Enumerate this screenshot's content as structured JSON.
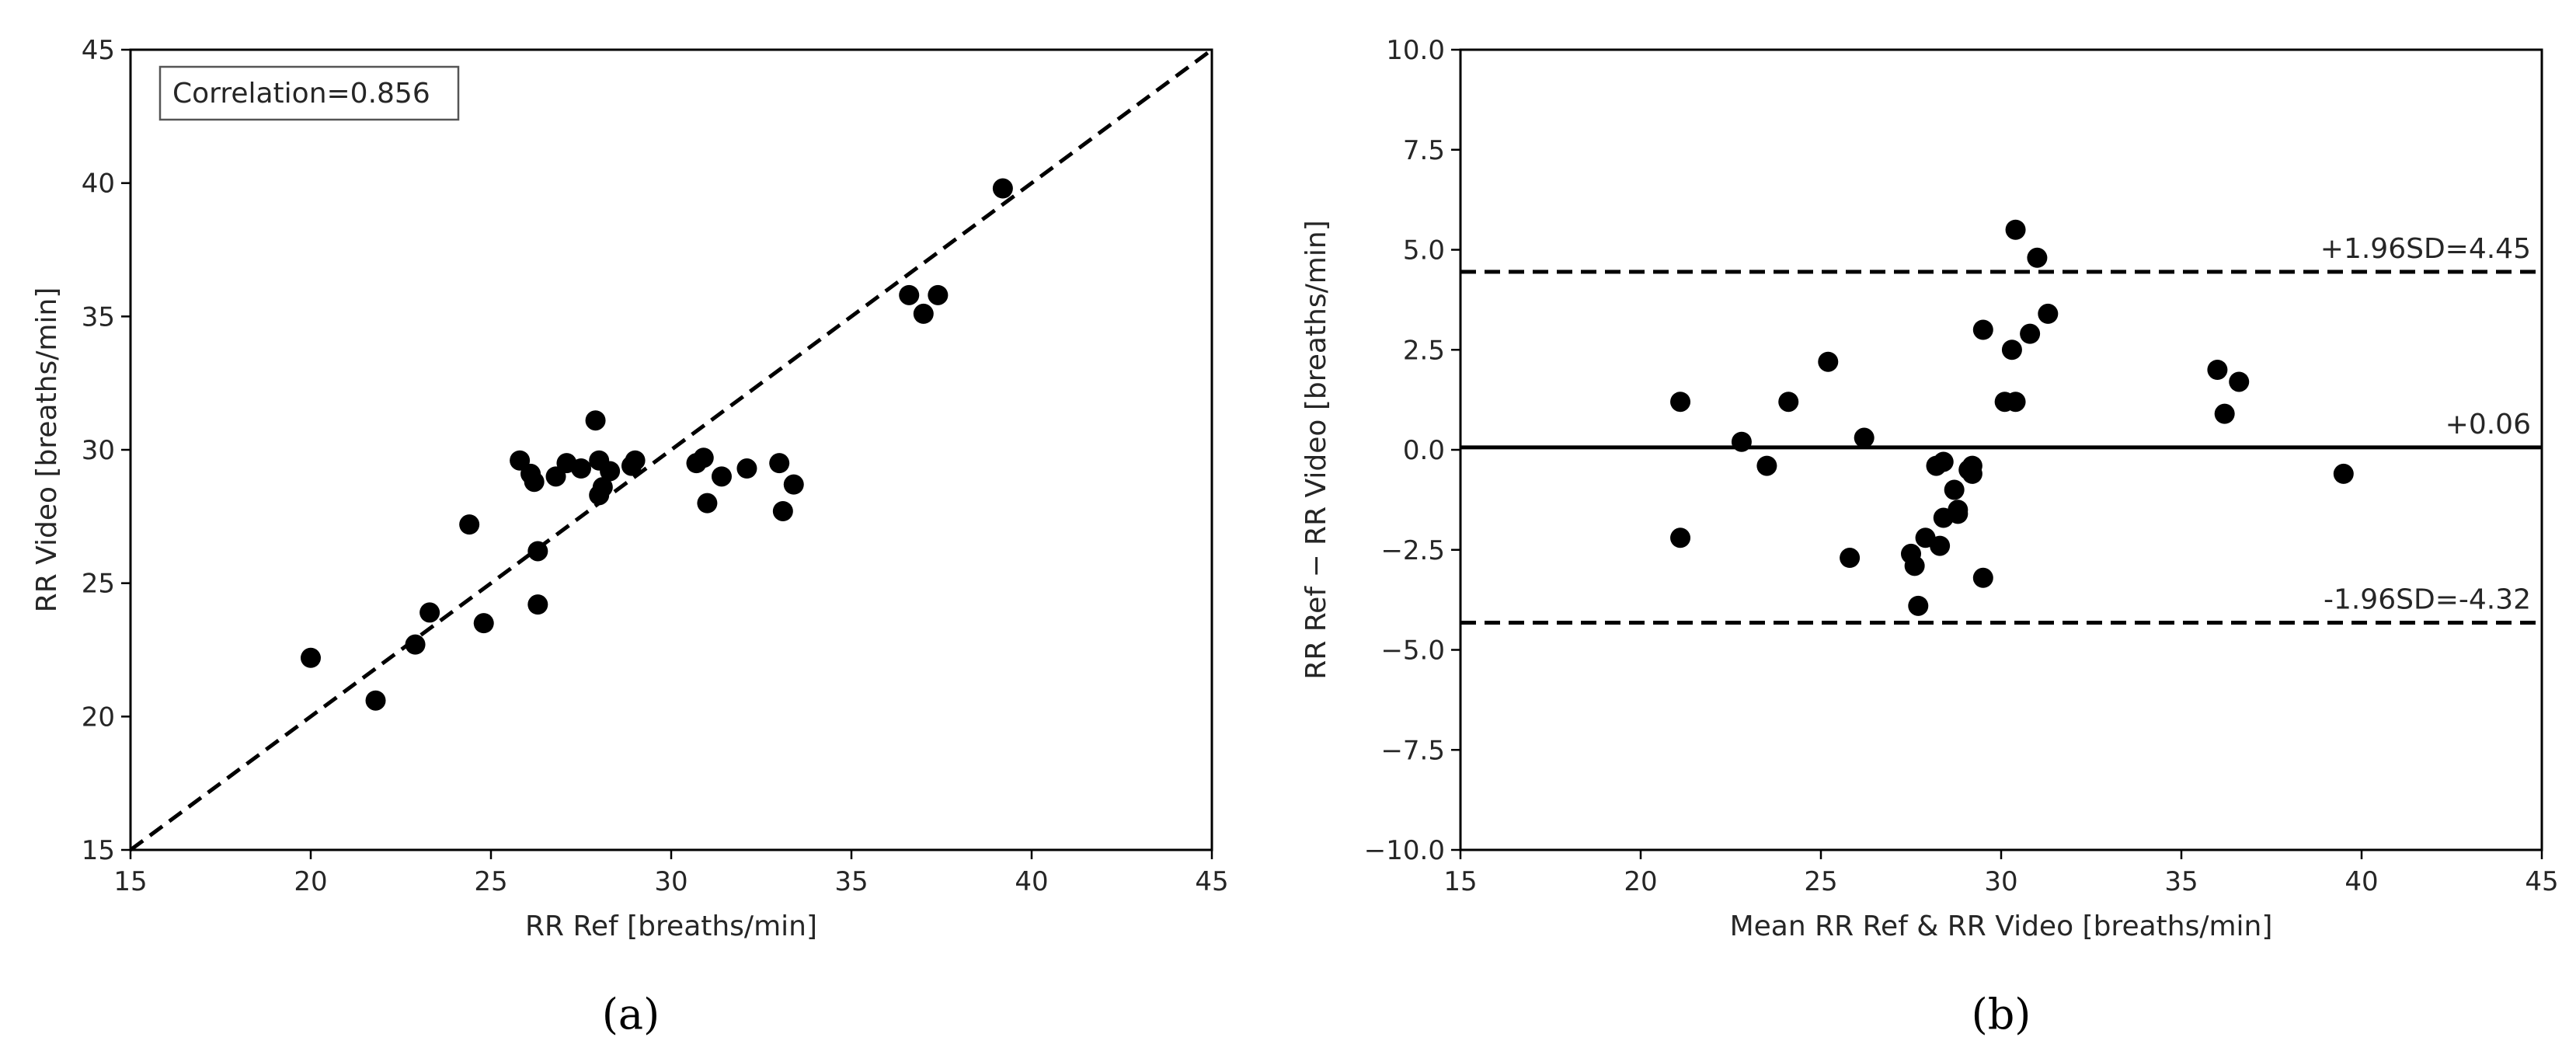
{
  "chart_data": [
    {
      "type": "scatter",
      "panel_caption": "(a)",
      "xlabel": "RR Ref [breaths/min]",
      "ylabel": "RR Video [breaths/min]",
      "xlim": [
        15,
        45
      ],
      "ylim": [
        15,
        45
      ],
      "xticks": [
        15,
        20,
        25,
        30,
        35,
        40,
        45
      ],
      "yticks": [
        15,
        20,
        25,
        30,
        35,
        40,
        45
      ],
      "xtick_labels": [
        "15",
        "20",
        "25",
        "30",
        "35",
        "40",
        "45"
      ],
      "ytick_labels": [
        "15",
        "20",
        "25",
        "30",
        "35",
        "40",
        "45"
      ],
      "legend_text": "Correlation=0.856",
      "legend_location": "top-left",
      "reference_line": {
        "style": "dashed",
        "x": [
          15,
          45
        ],
        "y": [
          15,
          45
        ]
      },
      "points": {
        "x": [
          20.0,
          21.8,
          22.9,
          23.3,
          24.4,
          24.8,
          25.8,
          26.1,
          26.2,
          26.3,
          26.3,
          26.8,
          27.1,
          27.5,
          27.9,
          28.0,
          28.0,
          28.1,
          28.3,
          28.9,
          29.0,
          30.7,
          30.9,
          31.0,
          31.4,
          32.1,
          33.0,
          33.1,
          33.4,
          36.6,
          37.0,
          37.4,
          39.2
        ],
        "y": [
          22.2,
          20.6,
          22.7,
          23.9,
          27.2,
          23.5,
          29.6,
          29.1,
          28.8,
          26.2,
          24.2,
          29.0,
          29.5,
          29.3,
          31.1,
          29.6,
          28.3,
          28.6,
          29.2,
          29.4,
          29.6,
          29.5,
          29.7,
          28.0,
          29.0,
          29.3,
          29.5,
          27.7,
          28.7,
          35.8,
          35.1,
          35.8,
          39.8
        ]
      }
    },
    {
      "type": "scatter",
      "panel_caption": "(b)",
      "xlabel": "Mean RR Ref & RR Video [breaths/min]",
      "ylabel": "RR Ref − RR Video [breaths/min]",
      "xlim": [
        15,
        45
      ],
      "ylim": [
        -10,
        10
      ],
      "xticks": [
        15,
        20,
        25,
        30,
        35,
        40,
        45
      ],
      "yticks": [
        -10,
        -7.5,
        -5,
        -2.5,
        0,
        2.5,
        5,
        7.5,
        10
      ],
      "xtick_labels": [
        "15",
        "20",
        "25",
        "30",
        "35",
        "40",
        "45"
      ],
      "ytick_labels": [
        "−10.0",
        "−7.5",
        "−5.0",
        "−2.5",
        "0.0",
        "2.5",
        "5.0",
        "7.5",
        "10.0"
      ],
      "mean_line": {
        "value": 0.06,
        "label": "+0.06",
        "style": "solid"
      },
      "upper_limit": {
        "value": 4.45,
        "label": "+1.96SD=4.45",
        "style": "dashed"
      },
      "lower_limit": {
        "value": -4.32,
        "label": "-1.96SD=-4.32",
        "style": "dashed"
      },
      "points": {
        "x": [
          21.1,
          21.1,
          22.8,
          23.5,
          24.1,
          25.2,
          25.8,
          26.2,
          27.5,
          27.6,
          27.7,
          27.9,
          28.2,
          28.3,
          28.4,
          28.4,
          28.7,
          28.8,
          28.8,
          29.1,
          29.2,
          29.2,
          29.5,
          29.5,
          30.1,
          30.3,
          30.4,
          30.4,
          30.8,
          31.0,
          31.3,
          36.0,
          36.2,
          36.6,
          39.5
        ],
        "y": [
          1.2,
          -2.2,
          0.2,
          -0.4,
          1.2,
          2.2,
          -2.7,
          0.3,
          -2.6,
          -2.9,
          -3.9,
          -2.2,
          -0.4,
          -2.4,
          -1.7,
          -0.3,
          -1.0,
          -1.6,
          -1.5,
          -0.5,
          -0.4,
          -0.6,
          3.0,
          -3.2,
          1.2,
          2.5,
          5.5,
          1.2,
          2.9,
          4.8,
          3.4,
          2.0,
          0.9,
          1.7,
          -0.6
        ]
      }
    }
  ]
}
